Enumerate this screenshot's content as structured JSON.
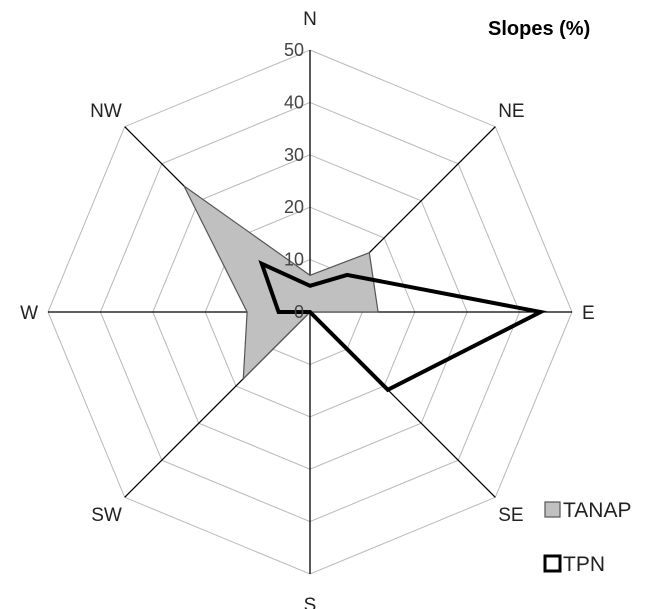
{
  "chart_data": {
    "type": "radar",
    "title": "Slopes (%)",
    "axes": [
      "N",
      "NE",
      "E",
      "SE",
      "S",
      "SW",
      "W",
      "NW"
    ],
    "rlim": [
      0,
      50
    ],
    "ticks": [
      0,
      10,
      20,
      30,
      40,
      50
    ],
    "grid": true,
    "legend_position": "bottom-right",
    "series": [
      {
        "name": "TANAP",
        "values": [
          7,
          16,
          13,
          0,
          0,
          18,
          12,
          34
        ],
        "fill": "#c0c0c0",
        "stroke": "#555555"
      },
      {
        "name": "TPN",
        "values": [
          5,
          10,
          44,
          21,
          0,
          0,
          6,
          13
        ],
        "fill": "none",
        "stroke": "#000000"
      }
    ]
  }
}
